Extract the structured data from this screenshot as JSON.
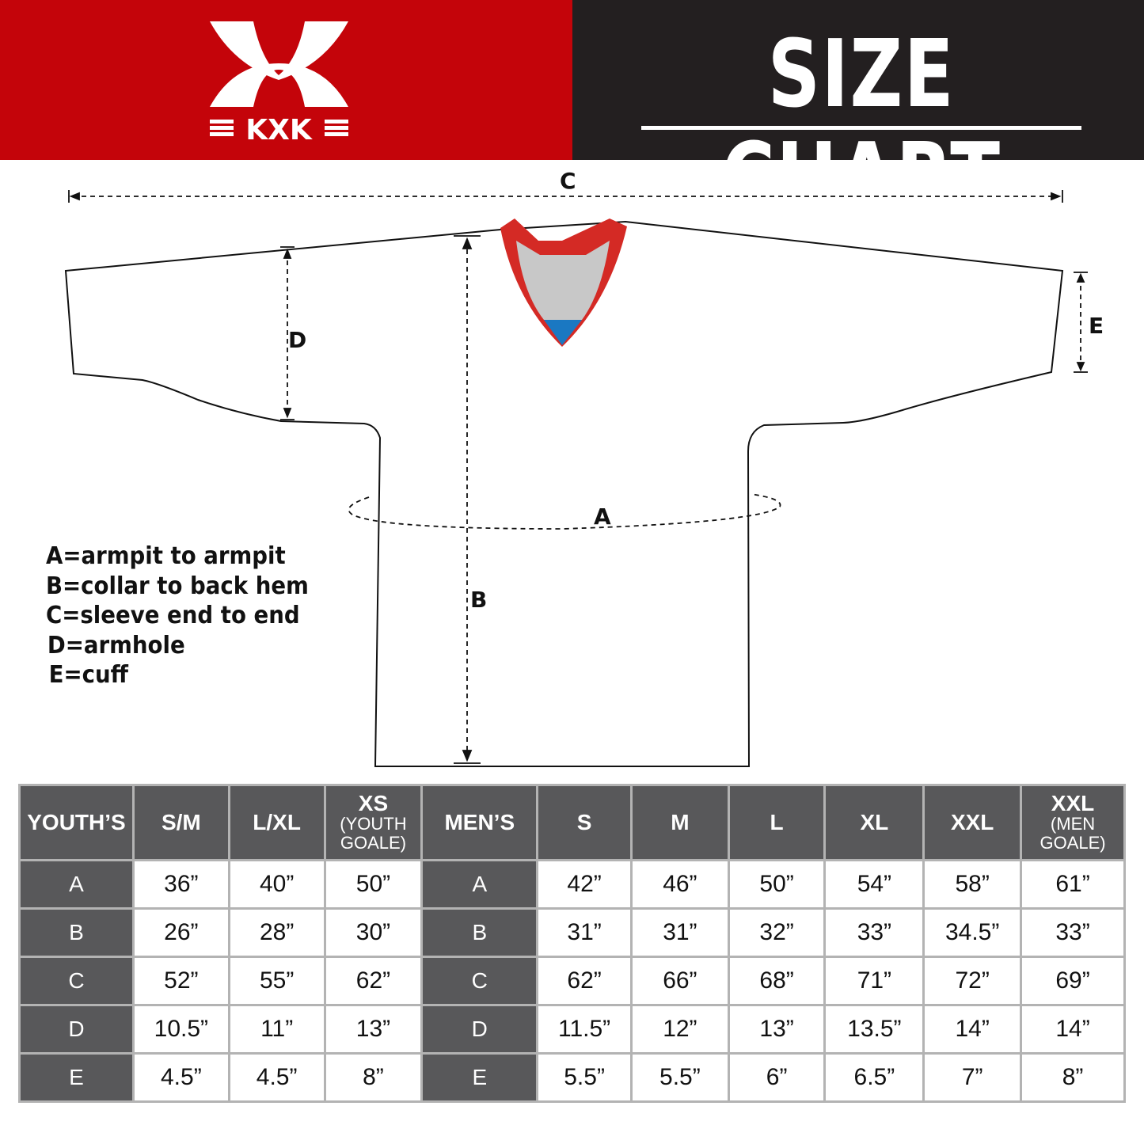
{
  "brand": {
    "name": "KXK",
    "color": "#c4040a"
  },
  "header": {
    "title": "SIZE CHART"
  },
  "diagram": {
    "labels": {
      "a": "A",
      "b": "B",
      "c": "C",
      "d": "D",
      "e": "E"
    },
    "collar_colors": {
      "trim": "#d42a25",
      "inner": "#c8c8c8",
      "tip": "#1a78c2"
    }
  },
  "legend": [
    "A=armpit to armpit",
    "B=collar to back hem",
    "C=sleeve end to end",
    "D=armhole",
    "E=cuff"
  ],
  "table": {
    "headers": [
      {
        "main": "YOUTH’S",
        "sub": ""
      },
      {
        "main": "S/M",
        "sub": ""
      },
      {
        "main": "L/XL",
        "sub": ""
      },
      {
        "main": "XS",
        "sub": "(YOUTH GOALE)"
      },
      {
        "main": "MEN’S",
        "sub": ""
      },
      {
        "main": "S",
        "sub": ""
      },
      {
        "main": "M",
        "sub": ""
      },
      {
        "main": "L",
        "sub": ""
      },
      {
        "main": "XL",
        "sub": ""
      },
      {
        "main": "XXL",
        "sub": ""
      },
      {
        "main": "XXL",
        "sub": "(MEN GOALE)"
      }
    ],
    "rows": [
      {
        "youth_label": "A",
        "youth": [
          "36”",
          "40”",
          "50”"
        ],
        "men_label": "A",
        "men": [
          "42”",
          "46”",
          "50”",
          "54”",
          "58”",
          "61”"
        ]
      },
      {
        "youth_label": "B",
        "youth": [
          "26”",
          "28”",
          "30”"
        ],
        "men_label": "B",
        "men": [
          "31”",
          "31”",
          "32”",
          "33”",
          "34.5”",
          "33”"
        ]
      },
      {
        "youth_label": "C",
        "youth": [
          "52”",
          "55”",
          "62”"
        ],
        "men_label": "C",
        "men": [
          "62”",
          "66”",
          "68”",
          "71”",
          "72”",
          "69”"
        ]
      },
      {
        "youth_label": "D",
        "youth": [
          "10.5”",
          "11”",
          "13”"
        ],
        "men_label": "D",
        "men": [
          "11.5”",
          "12”",
          "13”",
          "13.5”",
          "14”",
          "14”"
        ]
      },
      {
        "youth_label": "E",
        "youth": [
          "4.5”",
          "4.5”",
          "8”"
        ],
        "men_label": "E",
        "men": [
          "5.5”",
          "5.5”",
          "6”",
          "6.5”",
          "7”",
          "8”"
        ]
      }
    ]
  }
}
